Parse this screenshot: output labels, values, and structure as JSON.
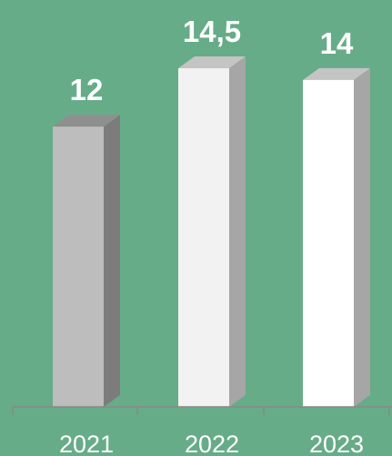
{
  "chart_data": {
    "type": "bar",
    "style": "3d-column",
    "categories": [
      "2021",
      "2022",
      "2023"
    ],
    "values": [
      12,
      14.5,
      14
    ],
    "value_labels": [
      "12",
      "14,5",
      "14"
    ],
    "ylim": [
      0,
      14.5
    ],
    "grid": false,
    "legend": "none",
    "colors": {
      "background": "#66ac88",
      "bars": [
        {
          "front": "#bdbdbd",
          "side": "#7c7c7c",
          "top": "#8f8f8f"
        },
        {
          "front": "#f2f2f2",
          "side": "#a6a6a6",
          "top": "#c4c4c4"
        },
        {
          "front": "#ffffff",
          "side": "#a6a6a6",
          "top": "#c4c4c4"
        }
      ],
      "axis": "#888888",
      "labels": "#ffffff"
    }
  }
}
